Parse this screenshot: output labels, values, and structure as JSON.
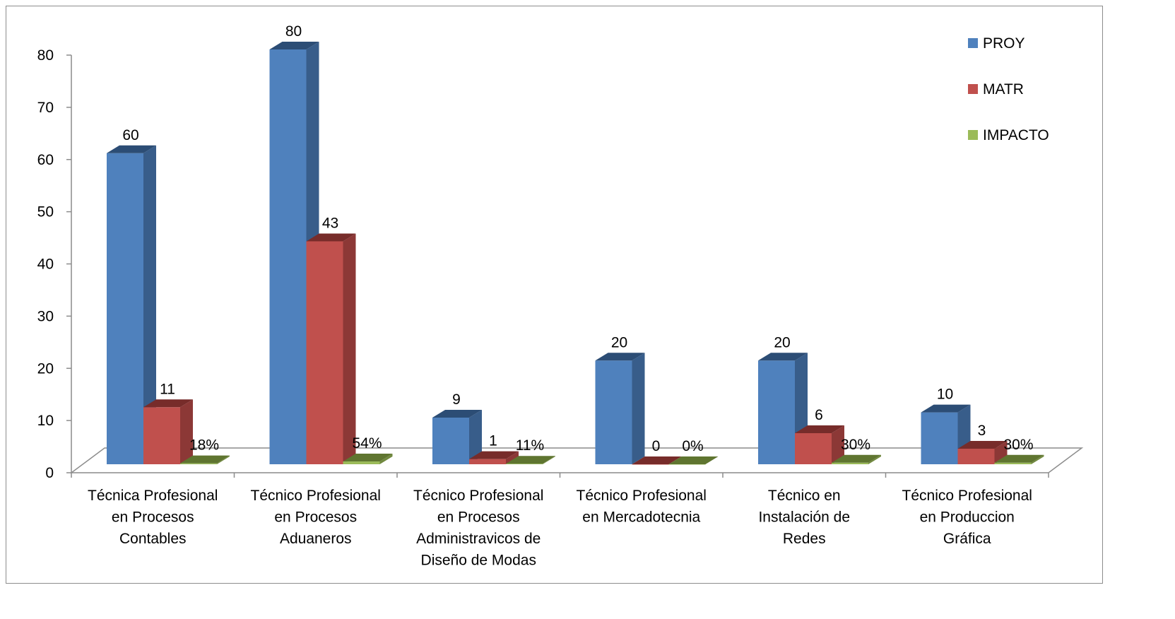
{
  "chart_data": {
    "type": "bar",
    "title": "",
    "xlabel": "",
    "ylabel": "",
    "ylim": [
      0,
      80
    ],
    "yticks": [
      "0",
      "10",
      "20",
      "30",
      "40",
      "50",
      "60",
      "70",
      "80"
    ],
    "categories": [
      [
        "Técnica Profesional",
        "en Procesos",
        "Contables"
      ],
      [
        "Técnico Profesional",
        "en Procesos",
        "Aduaneros"
      ],
      [
        "Técnico Profesional",
        "en Procesos",
        "Administravicos de",
        "Diseño de Modas"
      ],
      [
        "Técnico Profesional",
        "en Mercadotecnia"
      ],
      [
        "Técnico en",
        "Instalación de",
        "Redes"
      ],
      [
        "Técnico Profesional",
        "en Produccion",
        "Gráfica"
      ]
    ],
    "series": [
      {
        "name": "PROY",
        "values": [
          60,
          80,
          9,
          20,
          20,
          10
        ],
        "labels": [
          "60",
          "80",
          "9",
          "20",
          "20",
          "10"
        ],
        "color": "#4f81bd",
        "side": "#385d8a",
        "top": "#2c4d75"
      },
      {
        "name": "MATR",
        "values": [
          11,
          43,
          1,
          0,
          6,
          3
        ],
        "labels": [
          "11",
          "43",
          "1",
          "0",
          "6",
          "3"
        ],
        "color": "#c0504d",
        "side": "#8c3836",
        "top": "#772c2a"
      },
      {
        "name": "IMPACTO",
        "values": [
          0.18,
          0.54,
          0.11,
          0,
          0.3,
          0.3
        ],
        "labels": [
          "18%",
          "54%",
          "11%",
          "0%",
          "30%",
          "30%"
        ],
        "color": "#9bbb59",
        "side": "#71893f",
        "top": "#5f7530"
      }
    ],
    "legend": "top-right",
    "grid": false
  }
}
